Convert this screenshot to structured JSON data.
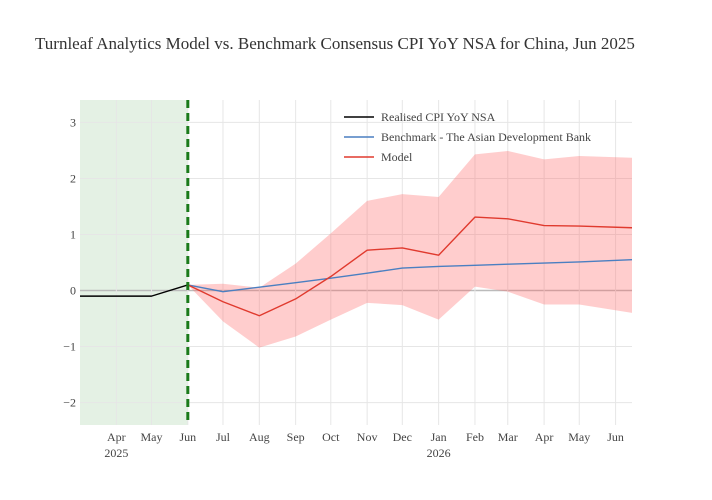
{
  "chart_data": {
    "type": "line",
    "title": "Turnleaf Analytics Model vs. Benchmark Consensus CPI YoY NSA for China, Jun 2025",
    "xlabel": "",
    "ylabel": "",
    "ylim": [
      -2.4,
      3.4
    ],
    "grid": true,
    "legend_position": "top-right",
    "x_ticks": [
      {
        "date": "2025-04-01",
        "label": "Apr",
        "year": "2025"
      },
      {
        "date": "2025-05-01",
        "label": "May",
        "year": ""
      },
      {
        "date": "2025-06-01",
        "label": "Jun",
        "year": ""
      },
      {
        "date": "2025-07-01",
        "label": "Jul",
        "year": ""
      },
      {
        "date": "2025-08-01",
        "label": "Aug",
        "year": ""
      },
      {
        "date": "2025-09-01",
        "label": "Sep",
        "year": ""
      },
      {
        "date": "2025-10-01",
        "label": "Oct",
        "year": ""
      },
      {
        "date": "2025-11-01",
        "label": "Nov",
        "year": ""
      },
      {
        "date": "2025-12-01",
        "label": "Dec",
        "year": ""
      },
      {
        "date": "2026-01-01",
        "label": "Jan",
        "year": "2026"
      },
      {
        "date": "2026-02-01",
        "label": "Feb",
        "year": ""
      },
      {
        "date": "2026-03-01",
        "label": "Mar",
        "year": ""
      },
      {
        "date": "2026-04-01",
        "label": "Apr",
        "year": ""
      },
      {
        "date": "2026-05-01",
        "label": "May",
        "year": ""
      },
      {
        "date": "2026-06-01",
        "label": "Jun",
        "year": ""
      }
    ],
    "y_ticks": [
      {
        "value": 3,
        "label": "3"
      },
      {
        "value": 2,
        "label": "2"
      },
      {
        "value": 1,
        "label": "1"
      },
      {
        "value": 0,
        "label": "0"
      },
      {
        "value": -1,
        "label": "−1"
      },
      {
        "value": -2,
        "label": "−2"
      }
    ],
    "x_range": [
      "2025-03-01",
      "2026-06-15"
    ],
    "shaded_region": {
      "from": "2025-03-01",
      "to": "2025-06-01",
      "color": "#e4f1e4"
    },
    "vertical_marker": {
      "date": "2025-06-01",
      "color": "#1a7a1a",
      "style": "dashed"
    },
    "series": [
      {
        "name": "Realised CPI YoY NSA",
        "color": "#000000",
        "points": [
          {
            "x": "2025-03-01",
            "y": -0.1
          },
          {
            "x": "2025-04-01",
            "y": -0.1
          },
          {
            "x": "2025-05-01",
            "y": -0.1
          },
          {
            "x": "2025-06-01",
            "y": 0.1
          }
        ]
      },
      {
        "name": "Benchmark - The Asian Development Bank",
        "color": "#4a7fc1",
        "points": [
          {
            "x": "2025-06-01",
            "y": 0.1
          },
          {
            "x": "2025-07-01",
            "y": -0.02
          },
          {
            "x": "2025-08-01",
            "y": 0.06
          },
          {
            "x": "2025-09-01",
            "y": 0.14
          },
          {
            "x": "2025-10-01",
            "y": 0.22
          },
          {
            "x": "2025-11-01",
            "y": 0.31
          },
          {
            "x": "2025-12-01",
            "y": 0.4
          },
          {
            "x": "2026-01-01",
            "y": 0.43
          },
          {
            "x": "2026-02-01",
            "y": 0.45
          },
          {
            "x": "2026-03-01",
            "y": 0.47
          },
          {
            "x": "2026-04-01",
            "y": 0.49
          },
          {
            "x": "2026-05-01",
            "y": 0.51
          },
          {
            "x": "2026-06-15",
            "y": 0.55
          }
        ]
      },
      {
        "name": "Model",
        "color": "#e03a2e",
        "band_color": "rgba(255,100,100,0.32)",
        "points": [
          {
            "x": "2025-06-01",
            "y": 0.1,
            "lo": 0.1,
            "hi": 0.1
          },
          {
            "x": "2025-07-01",
            "y": -0.2,
            "lo": -0.55,
            "hi": 0.12
          },
          {
            "x": "2025-08-01",
            "y": -0.45,
            "lo": -1.02,
            "hi": 0.05
          },
          {
            "x": "2025-09-01",
            "y": -0.15,
            "lo": -0.82,
            "hi": 0.48
          },
          {
            "x": "2025-10-01",
            "y": 0.25,
            "lo": -0.52,
            "hi": 1.02
          },
          {
            "x": "2025-11-01",
            "y": 0.72,
            "lo": -0.22,
            "hi": 1.6
          },
          {
            "x": "2025-12-01",
            "y": 0.76,
            "lo": -0.26,
            "hi": 1.72
          },
          {
            "x": "2026-01-01",
            "y": 0.63,
            "lo": -0.52,
            "hi": 1.67
          },
          {
            "x": "2026-02-01",
            "y": 1.31,
            "lo": 0.07,
            "hi": 2.43
          },
          {
            "x": "2026-03-01",
            "y": 1.28,
            "lo": -0.02,
            "hi": 2.49
          },
          {
            "x": "2026-04-01",
            "y": 1.16,
            "lo": -0.25,
            "hi": 2.34
          },
          {
            "x": "2026-05-01",
            "y": 1.15,
            "lo": -0.25,
            "hi": 2.4
          },
          {
            "x": "2026-06-15",
            "y": 1.12,
            "lo": -0.4,
            "hi": 2.37
          }
        ]
      }
    ]
  }
}
